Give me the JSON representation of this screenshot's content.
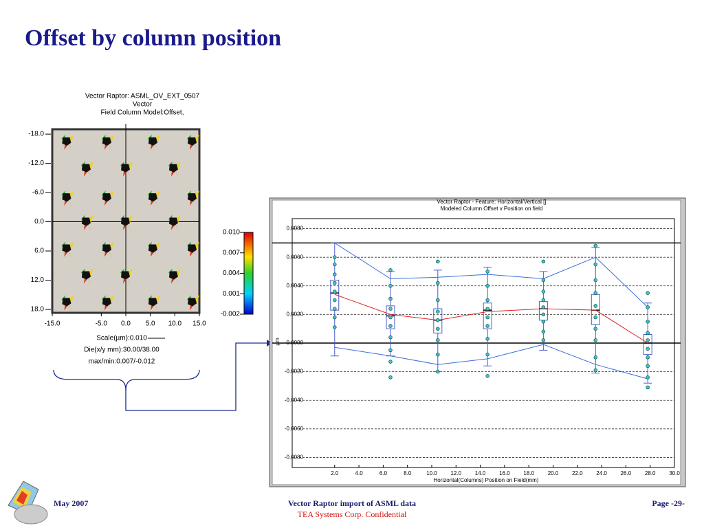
{
  "slide_title": "Offset by column position",
  "footer": {
    "date": "May 2007",
    "center": "Vector Raptor import of ASML data",
    "confidential": "TEA Systems Corp. Confidential",
    "page": "Page -29-"
  },
  "chart_data": [
    {
      "type": "vector",
      "title": [
        "Vector Raptor: ASML_OV_EXT_0507",
        "Vector",
        "Field Column Model:Offset,"
      ],
      "notes": [
        "Scale(µm):0.010",
        "Die(x/y mm):30.00/38.00",
        "max/min:0.007/-0.012"
      ],
      "x": [
        -12,
        -3.8,
        5.6,
        13.6,
        -8,
        0,
        9.8,
        -12,
        -3.8,
        5.6,
        13.6,
        -8,
        0,
        9.8,
        -12,
        -3.8,
        5.6,
        13.6,
        -8,
        0,
        9.8,
        -12,
        -3.8,
        5.6,
        13.6
      ],
      "y": [
        -16.5,
        -16.5,
        -16.5,
        -16.5,
        -11,
        -11,
        -11,
        -5,
        -5,
        -5,
        -5,
        0,
        0,
        0,
        5.5,
        5.5,
        5.5,
        5.5,
        11,
        11,
        11,
        16.5,
        16.5,
        16.5,
        16.5
      ],
      "xlim": [
        -15,
        15
      ],
      "ylim": [
        -19,
        18.7
      ],
      "y_inverted": true,
      "xticks": [
        {
          "value": -15,
          "label": "-15.0"
        },
        {
          "value": -5,
          "label": "-5.0"
        },
        {
          "value": 0,
          "label": "0.0"
        },
        {
          "value": 5,
          "label": "5.0"
        },
        {
          "value": 10,
          "label": "10.0"
        },
        {
          "value": 15,
          "label": "15.0"
        }
      ],
      "yticks": [
        {
          "value": -18,
          "label": "-18.0"
        },
        {
          "value": -12,
          "label": "-12.0"
        },
        {
          "value": -6,
          "label": "-6.0"
        },
        {
          "value": 0,
          "label": "0.0"
        },
        {
          "value": 6,
          "label": "6.0"
        },
        {
          "value": 12,
          "label": "12.0"
        },
        {
          "value": 18,
          "label": "18.0"
        }
      ],
      "colorbar_lim": [
        -0.002,
        0.01
      ],
      "colorbar_ticks": [
        {
          "value": 0.01,
          "label": "0.010"
        },
        {
          "value": 0.007,
          "label": "0.007"
        },
        {
          "value": 0.004,
          "label": "0.004"
        },
        {
          "value": 0.001,
          "label": "0.001"
        },
        {
          "value": -0.002,
          "label": "-0.002"
        }
      ]
    },
    {
      "type": "box",
      "title": [
        "Vector Raptor - Feature: Horizontal/Vertical []",
        "Modeled Column Offset v Position on field"
      ],
      "xlabel": "Horizontal(Columns) Position on Field(mm)",
      "ylabel": "µm",
      "x": [
        2.0,
        6.6,
        10.5,
        14.6,
        19.2,
        23.5,
        27.8
      ],
      "boxes": {
        "min": [
          -0.0009,
          -0.0009,
          -0.002,
          -0.0016,
          -0.0005,
          -0.0021,
          -0.0028
        ],
        "q1": [
          0.0023,
          0.001,
          0.0007,
          0.001,
          0.0016,
          0.0013,
          -0.0008
        ],
        "median": [
          0.0035,
          0.0019,
          0.0016,
          0.0023,
          0.0024,
          0.0023,
          0.0
        ],
        "q3": [
          0.0044,
          0.0026,
          0.0024,
          0.0028,
          0.0029,
          0.0034,
          0.0006
        ],
        "max": [
          0.007,
          0.005,
          0.0051,
          0.0053,
          0.005,
          0.0067,
          0.0028
        ]
      },
      "series": [
        {
          "color": "#e02020",
          "values": [
            0.0034,
            0.002,
            0.0016,
            0.0022,
            0.0024,
            0.0023,
            0.0
          ]
        },
        {
          "color": "#3a6fd8",
          "values": [
            0.007,
            0.0045,
            0.0046,
            0.0048,
            0.0045,
            0.006,
            0.0025
          ]
        },
        {
          "color": "#3a6fd8",
          "values": [
            -0.0003,
            -0.0009,
            -0.0015,
            -0.0011,
            -0.0001,
            -0.0015,
            -0.0025
          ]
        }
      ],
      "points": [
        [
          0.006,
          0.0055,
          0.0048,
          0.0042,
          0.0036,
          0.003,
          0.0024,
          0.0018,
          0.0011
        ],
        [
          0.0051,
          0.004,
          0.0031,
          0.0024,
          0.0018,
          0.0012,
          0.0004,
          -0.0005,
          -0.0013,
          -0.0024
        ],
        [
          0.0057,
          0.0042,
          0.003,
          0.0022,
          0.0016,
          0.001,
          0.0002,
          -0.0008,
          -0.002
        ],
        [
          0.005,
          0.004,
          0.003,
          0.0024,
          0.0018,
          0.0012,
          0.0003,
          -0.0008,
          -0.0023
        ],
        [
          0.0057,
          0.0044,
          0.0036,
          0.003,
          0.0025,
          0.002,
          0.0015,
          0.0008,
          0.0002
        ],
        [
          0.0068,
          0.0055,
          0.0044,
          0.0035,
          0.0026,
          0.0018,
          0.001,
          0.0002,
          -0.001,
          -0.0019
        ],
        [
          0.0035,
          0.0025,
          0.0015,
          0.0007,
          0.0002,
          -0.0004,
          -0.001,
          -0.0016,
          -0.0024,
          -0.0031
        ]
      ],
      "reference_lines": [
        0.007,
        0
      ],
      "xlim": [
        -1.5,
        30
      ],
      "ylim": [
        -0.0087,
        0.0087
      ],
      "grid": true,
      "xticks": [
        {
          "value": 2,
          "label": "2.0"
        },
        {
          "value": 4,
          "label": "4.0"
        },
        {
          "value": 6,
          "label": "6.0"
        },
        {
          "value": 8,
          "label": "8.0"
        },
        {
          "value": 10,
          "label": "10.0"
        },
        {
          "value": 12,
          "label": "12.0"
        },
        {
          "value": 14,
          "label": "14.0"
        },
        {
          "value": 16,
          "label": "16.0"
        },
        {
          "value": 18,
          "label": "18.0"
        },
        {
          "value": 20,
          "label": "20.0"
        },
        {
          "value": 22,
          "label": "22.0"
        },
        {
          "value": 24,
          "label": "24.0"
        },
        {
          "value": 26,
          "label": "26.0"
        },
        {
          "value": 28,
          "label": "28.0"
        },
        {
          "value": 30,
          "label": "30.0"
        }
      ],
      "yticks": [
        {
          "value": 0.008,
          "label": "0.0080"
        },
        {
          "value": 0.006,
          "label": "0.0060"
        },
        {
          "value": 0.004,
          "label": "0.0040"
        },
        {
          "value": 0.002,
          "label": "0.0020"
        },
        {
          "value": 0,
          "label": "0.0000"
        },
        {
          "value": -0.002,
          "label": "-0.0020"
        },
        {
          "value": -0.004,
          "label": "-0.0040"
        },
        {
          "value": -0.006,
          "label": "-0.0060"
        },
        {
          "value": -0.008,
          "label": "-0.0080"
        }
      ]
    }
  ]
}
